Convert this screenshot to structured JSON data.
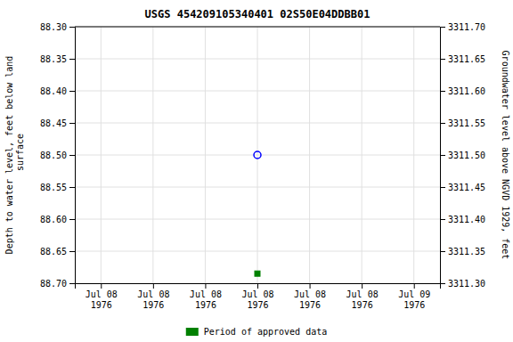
{
  "chart_data": {
    "type": "scatter",
    "title": "USGS 454209105340401 02S50E04DDBB01",
    "y_label": "Depth to water level, feet below land\n surface",
    "y2_label": "Groundwater level above NGVD 1929, feet",
    "categories": [
      "Jul 08\n1976",
      "Jul 08\n1976",
      "Jul 08\n1976",
      "Jul 08\n1976",
      "Jul 08\n1976",
      "Jul 08\n1976",
      "Jul 09\n1976"
    ],
    "series": [
      {
        "color": "#0000ff",
        "marker": "circle-open",
        "values": [
          null,
          null,
          null,
          88.5,
          null,
          null,
          null
        ]
      },
      {
        "name": "Period of approved data",
        "color": "#008000",
        "marker": "square",
        "values": [
          null,
          null,
          null,
          88.685,
          null,
          null,
          null
        ]
      }
    ],
    "ylim": [
      88.7,
      88.3
    ],
    "yticks": [
      {
        "value": 88.3,
        "label": "88.30"
      },
      88.35,
      {
        "value": 88.4,
        "label": "88.40"
      },
      88.45,
      {
        "value": 88.5,
        "label": "88.50"
      },
      88.55,
      {
        "value": 88.6,
        "label": "88.60"
      },
      88.65,
      {
        "value": 88.7,
        "label": "88.70"
      }
    ],
    "y2lim": [
      3311.3,
      3311.7
    ],
    "y2ticks": [
      {
        "value": 3311.3,
        "label": "3311.30"
      },
      3311.35,
      {
        "value": 3311.4,
        "label": "3311.40"
      },
      3311.45,
      {
        "value": 3311.5,
        "label": "3311.50"
      },
      3311.55,
      {
        "value": 3311.6,
        "label": "3311.60"
      },
      3311.65,
      {
        "value": 3311.7,
        "label": "3311.70"
      }
    ],
    "grid": true,
    "legend": "bottom"
  }
}
